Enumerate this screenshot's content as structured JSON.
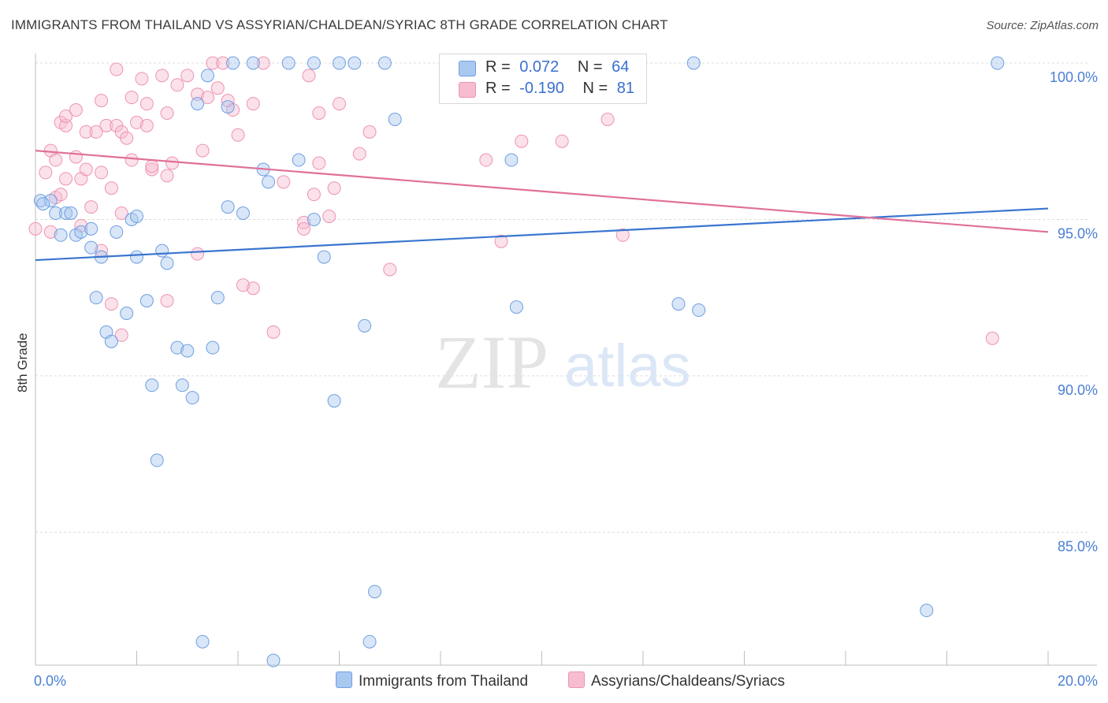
{
  "header": {
    "title": "IMMIGRANTS FROM THAILAND VS ASSYRIAN/CHALDEAN/SYRIAC 8TH GRADE CORRELATION CHART",
    "source": "Source: ZipAtlas.com"
  },
  "watermark": {
    "zip": "ZIP",
    "atlas": "atlas"
  },
  "legend": {
    "rows": [
      {
        "r_label": "R =",
        "r_value": "0.072",
        "n_label": "N =",
        "n_value": "64"
      },
      {
        "r_label": "R =",
        "r_value": "-0.190",
        "n_label": "N =",
        "n_value": "81"
      }
    ]
  },
  "colors": {
    "blue_fill": "#a9c8f0",
    "blue_stroke": "#6f9fe0",
    "blue_line": "#3a75d0",
    "pink_fill": "#f6bdd0",
    "pink_stroke": "#ee93b3",
    "pink_line": "#e0709a",
    "axis_text": "#4a7fd4",
    "grid": "#dcdcdc"
  },
  "chart_data": {
    "type": "scatter",
    "title": "IMMIGRANTS FROM THAILAND VS ASSYRIAN/CHALDEAN/SYRIAC 8TH GRADE CORRELATION CHART",
    "ylabel": "8th Grade",
    "xlim": [
      0,
      20
    ],
    "ylim": [
      80.75,
      100.5
    ],
    "x_tick_labels": {
      "0": "0.0%",
      "20": "20.0%"
    },
    "y_ticks": [
      100,
      95,
      90,
      85
    ],
    "y_tick_labels": [
      "100.0%",
      "95.0%",
      "90.0%",
      "85.0%"
    ],
    "grid": true,
    "series": [
      {
        "name": "Immigrants from Thailand",
        "color": "#a9c8f0",
        "r": 0.072,
        "n": 64,
        "trend": [
          [
            0,
            93.7
          ],
          [
            20,
            95.35
          ]
        ],
        "points": [
          [
            0.1,
            95.6
          ],
          [
            0.3,
            95.6
          ],
          [
            0.4,
            95.2
          ],
          [
            0.6,
            95.2
          ],
          [
            0.5,
            94.5
          ],
          [
            0.8,
            94.5
          ],
          [
            0.9,
            94.6
          ],
          [
            1.1,
            94.1
          ],
          [
            1.3,
            93.8
          ],
          [
            1.6,
            94.6
          ],
          [
            1.9,
            95.0
          ],
          [
            2.0,
            95.1
          ],
          [
            2.0,
            93.8
          ],
          [
            2.5,
            94.0
          ],
          [
            2.6,
            93.6
          ],
          [
            3.8,
            95.4
          ],
          [
            4.1,
            95.2
          ],
          [
            5.5,
            95.0
          ],
          [
            5.7,
            93.8
          ],
          [
            4.5,
            96.6
          ],
          [
            4.6,
            96.2
          ],
          [
            5.2,
            96.9
          ],
          [
            7.1,
            98.2
          ],
          [
            9.4,
            96.9
          ],
          [
            1.2,
            92.5
          ],
          [
            1.4,
            91.4
          ],
          [
            1.5,
            91.1
          ],
          [
            1.8,
            92.0
          ],
          [
            2.2,
            92.4
          ],
          [
            3.6,
            92.5
          ],
          [
            2.8,
            90.9
          ],
          [
            3.0,
            90.8
          ],
          [
            3.5,
            90.9
          ],
          [
            2.3,
            89.7
          ],
          [
            2.9,
            89.7
          ],
          [
            3.1,
            89.3
          ],
          [
            6.5,
            91.6
          ],
          [
            5.9,
            89.2
          ],
          [
            9.5,
            92.2
          ],
          [
            12.7,
            92.3
          ],
          [
            13.1,
            92.1
          ],
          [
            2.4,
            87.3
          ],
          [
            6.7,
            83.1
          ],
          [
            6.6,
            81.5
          ],
          [
            3.3,
            81.5
          ],
          [
            4.7,
            80.9
          ],
          [
            17.6,
            82.5
          ],
          [
            3.2,
            98.7
          ],
          [
            3.4,
            99.6
          ],
          [
            3.8,
            98.6
          ],
          [
            3.9,
            100.0
          ],
          [
            4.3,
            100.0
          ],
          [
            5.0,
            100.0
          ],
          [
            5.5,
            100.0
          ],
          [
            6.0,
            100.0
          ],
          [
            6.3,
            100.0
          ],
          [
            6.9,
            100.0
          ],
          [
            11.2,
            100.0
          ],
          [
            13.0,
            100.0
          ],
          [
            19.0,
            100.0
          ],
          [
            1.1,
            94.7
          ],
          [
            0.7,
            95.2
          ],
          [
            0.15,
            95.5
          ]
        ]
      },
      {
        "name": "Assyrians/Chaldeans/Syriacs",
        "color": "#f6bdd0",
        "r": -0.19,
        "n": 81,
        "trend": [
          [
            0,
            97.2
          ],
          [
            20,
            94.6
          ]
        ],
        "points": [
          [
            0.0,
            94.7
          ],
          [
            0.3,
            94.6
          ],
          [
            0.2,
            96.5
          ],
          [
            0.4,
            95.7
          ],
          [
            0.5,
            95.8
          ],
          [
            0.6,
            96.3
          ],
          [
            0.3,
            97.2
          ],
          [
            0.4,
            96.9
          ],
          [
            0.9,
            96.3
          ],
          [
            0.8,
            97.0
          ],
          [
            1.0,
            96.6
          ],
          [
            1.1,
            95.4
          ],
          [
            1.3,
            96.5
          ],
          [
            1.5,
            96.0
          ],
          [
            1.7,
            95.2
          ],
          [
            1.9,
            96.9
          ],
          [
            2.3,
            96.6
          ],
          [
            2.6,
            96.4
          ],
          [
            2.7,
            96.8
          ],
          [
            2.3,
            96.7
          ],
          [
            0.5,
            98.1
          ],
          [
            0.6,
            98.0
          ],
          [
            0.6,
            98.3
          ],
          [
            0.8,
            98.5
          ],
          [
            1.0,
            97.8
          ],
          [
            1.2,
            97.8
          ],
          [
            1.3,
            98.8
          ],
          [
            1.4,
            98.0
          ],
          [
            1.6,
            98.0
          ],
          [
            1.7,
            97.8
          ],
          [
            1.8,
            97.6
          ],
          [
            2.0,
            98.1
          ],
          [
            2.2,
            98.0
          ],
          [
            1.9,
            98.9
          ],
          [
            2.1,
            99.5
          ],
          [
            2.2,
            98.7
          ],
          [
            2.5,
            99.6
          ],
          [
            2.6,
            98.4
          ],
          [
            2.8,
            99.3
          ],
          [
            3.2,
            99.0
          ],
          [
            3.4,
            98.9
          ],
          [
            3.6,
            99.2
          ],
          [
            3.8,
            98.8
          ],
          [
            3.9,
            98.5
          ],
          [
            4.0,
            97.7
          ],
          [
            4.3,
            98.7
          ],
          [
            5.4,
            99.6
          ],
          [
            5.6,
            98.4
          ],
          [
            6.0,
            98.7
          ],
          [
            6.4,
            97.1
          ],
          [
            6.6,
            97.8
          ],
          [
            4.9,
            96.2
          ],
          [
            5.5,
            95.8
          ],
          [
            5.9,
            96.0
          ],
          [
            5.6,
            96.8
          ],
          [
            5.3,
            94.9
          ],
          [
            5.8,
            95.1
          ],
          [
            5.3,
            94.7
          ],
          [
            2.6,
            92.4
          ],
          [
            4.3,
            92.8
          ],
          [
            4.1,
            92.9
          ],
          [
            4.7,
            91.4
          ],
          [
            1.5,
            92.3
          ],
          [
            1.7,
            91.3
          ],
          [
            1.3,
            94.0
          ],
          [
            0.9,
            94.8
          ],
          [
            3.2,
            93.9
          ],
          [
            7.0,
            93.4
          ],
          [
            8.9,
            96.9
          ],
          [
            9.2,
            94.3
          ],
          [
            9.6,
            97.5
          ],
          [
            10.4,
            97.5
          ],
          [
            11.3,
            98.2
          ],
          [
            11.6,
            94.5
          ],
          [
            18.9,
            91.2
          ],
          [
            1.6,
            99.8
          ],
          [
            3.0,
            99.6
          ],
          [
            3.3,
            97.2
          ],
          [
            3.5,
            100.0
          ],
          [
            3.7,
            100.0
          ],
          [
            4.5,
            100.0
          ]
        ]
      }
    ]
  },
  "bottom_legend": {
    "items": [
      {
        "label": "Immigrants from Thailand",
        "color": "#a9c8f0",
        "border": "#6f9fe0"
      },
      {
        "label": "Assyrians/Chaldeans/Syriacs",
        "color": "#f6bdd0",
        "border": "#ee93b3"
      }
    ]
  }
}
